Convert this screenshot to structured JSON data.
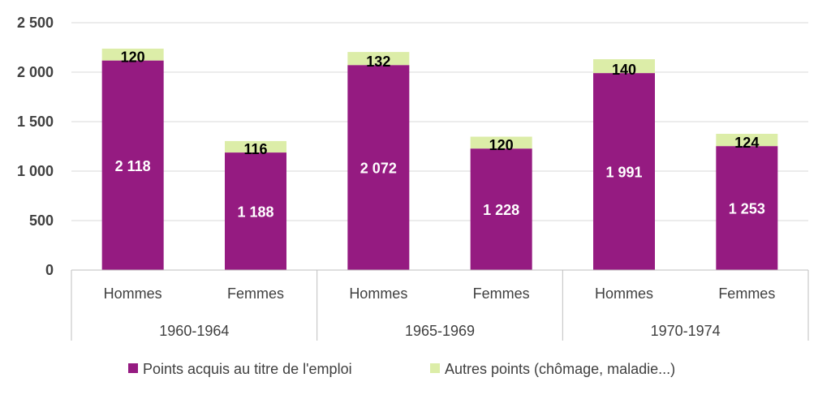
{
  "chart_data": {
    "type": "bar",
    "stacked": true,
    "categories": [
      "Hommes",
      "Femmes",
      "Hommes",
      "Femmes",
      "Hommes",
      "Femmes"
    ],
    "groups": [
      {
        "label": "1960-1964",
        "categories": [
          "Hommes",
          "Femmes"
        ]
      },
      {
        "label": "1965-1969",
        "categories": [
          "Hommes",
          "Femmes"
        ]
      },
      {
        "label": "1970-1974",
        "categories": [
          "Hommes",
          "Femmes"
        ]
      }
    ],
    "series": [
      {
        "name": "Points acquis au titre de l'emploi",
        "color": "#951B81",
        "values": [
          2118,
          1188,
          2072,
          1228,
          1991,
          1253
        ],
        "labels": [
          "2 118",
          "1 188",
          "2 072",
          "1 228",
          "1 991",
          "1 253"
        ],
        "label_color": "#ffffff"
      },
      {
        "name": "Autres points (chômage, maladie...)",
        "color": "#DCEDA8",
        "values": [
          120,
          116,
          132,
          120,
          140,
          124
        ],
        "labels": [
          "120",
          "116",
          "132",
          "120",
          "140",
          "124"
        ],
        "label_color": "#000000"
      }
    ],
    "yticks": [
      0,
      500,
      1000,
      1500,
      2000,
      2500
    ],
    "ytick_labels": [
      "0",
      "500",
      "1 000",
      "1 500",
      "2 000",
      "2 500"
    ],
    "ylim": [
      0,
      2500
    ],
    "grid": true,
    "legend_position": "bottom"
  }
}
